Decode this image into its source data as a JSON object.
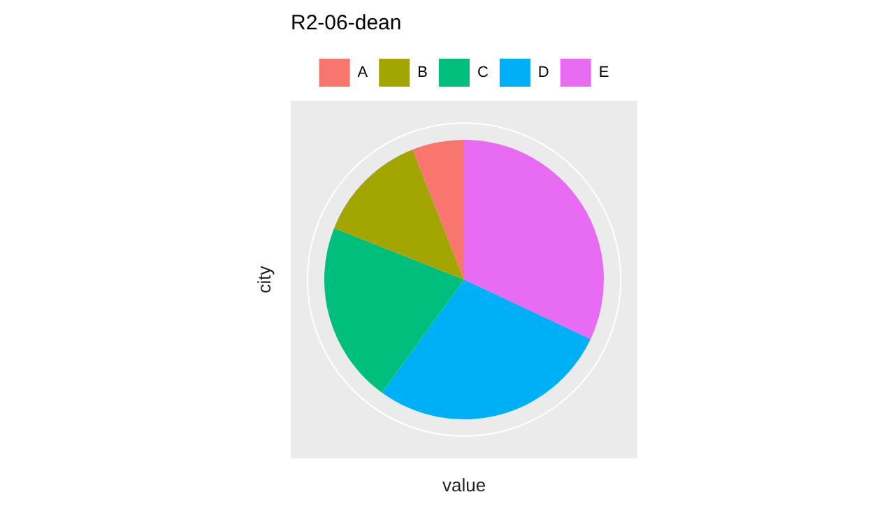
{
  "chart_data": {
    "type": "pie",
    "title": "R2-06-dean",
    "xlabel": "value",
    "ylabel": "city",
    "legend": "top",
    "categories": [
      "A",
      "B",
      "C",
      "D",
      "E"
    ],
    "values": [
      6,
      13,
      21,
      28,
      32
    ],
    "colors": [
      "#f8766d",
      "#a3a500",
      "#00bf7d",
      "#00b0f6",
      "#e76bf3"
    ]
  }
}
